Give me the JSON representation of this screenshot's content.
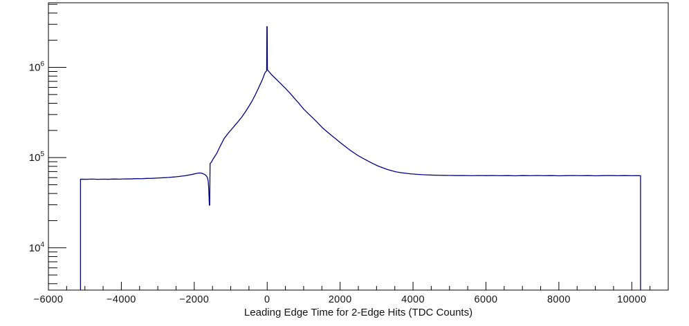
{
  "chart_data": {
    "type": "line",
    "title": "",
    "xlabel": "Leading Edge Time for 2-Edge Hits (TDC Counts)",
    "ylabel": "",
    "grid": false,
    "legend": null,
    "background_color": "#ffffff",
    "frame_color": "#000000",
    "x_axis": {
      "min": -6000,
      "max": 11000,
      "major_tick_values": [
        -6000,
        -4000,
        -2000,
        0,
        2000,
        4000,
        6000,
        8000,
        10000
      ],
      "major_tick_labels": [
        "−6000",
        "−4000",
        "−2000",
        "0",
        "2000",
        "4000",
        "6000",
        "8000",
        "10000"
      ],
      "minor_tick_step": 500
    },
    "y_axis": {
      "scale": "log",
      "min": 3400,
      "max": 5200000,
      "major_tick_values": [
        10000,
        100000,
        1000000
      ],
      "major_tick_labels": [
        {
          "mantissa": "10",
          "exponent": "4"
        },
        {
          "mantissa": "10",
          "exponent": "5"
        },
        {
          "mantissa": "10",
          "exponent": "6"
        }
      ],
      "minor_multiples": [
        2,
        3,
        4,
        5,
        6,
        7,
        8,
        9
      ]
    },
    "series": [
      {
        "name": "leading-edge-time-2edge-hits",
        "color": "#00008b",
        "line_width": 1.3,
        "x_data_range": [
          -5120,
          10240
        ],
        "plateau_left": 57600,
        "plateau_right": 63000,
        "dip_x": -1590,
        "dip_value": 29700,
        "peak_value": 910000,
        "spike_value": 2830000,
        "points": [
          [
            -5120,
            3400
          ],
          [
            -5120,
            57600
          ],
          [
            -4950,
            57500
          ],
          [
            -4800,
            57800
          ],
          [
            -4650,
            57400
          ],
          [
            -4500,
            57700
          ],
          [
            -4350,
            57500
          ],
          [
            -4200,
            57900
          ],
          [
            -4050,
            57700
          ],
          [
            -3900,
            58100
          ],
          [
            -3750,
            58000
          ],
          [
            -3600,
            58400
          ],
          [
            -3450,
            58300
          ],
          [
            -3300,
            58800
          ],
          [
            -3150,
            58900
          ],
          [
            -3000,
            59400
          ],
          [
            -2850,
            59800
          ],
          [
            -2700,
            60300
          ],
          [
            -2550,
            61000
          ],
          [
            -2400,
            61900
          ],
          [
            -2250,
            63000
          ],
          [
            -2100,
            64600
          ],
          [
            -2000,
            65900
          ],
          [
            -1920,
            67000
          ],
          [
            -1870,
            67500
          ],
          [
            -1810,
            67300
          ],
          [
            -1760,
            66400
          ],
          [
            -1710,
            64800
          ],
          [
            -1670,
            62800
          ],
          [
            -1640,
            60200
          ],
          [
            -1618,
            55000
          ],
          [
            -1604,
            46000
          ],
          [
            -1594,
            36500
          ],
          [
            -1586,
            29700
          ],
          [
            -1576,
            29700
          ],
          [
            -1570,
            62000
          ],
          [
            -1566,
            86000
          ],
          [
            -1530,
            89000
          ],
          [
            -1490,
            95500
          ],
          [
            -1440,
            102500
          ],
          [
            -1380,
            112000
          ],
          [
            -1300,
            131000
          ],
          [
            -1180,
            163000
          ],
          [
            -1060,
            188000
          ],
          [
            -990,
            203000
          ],
          [
            -900,
            224000
          ],
          [
            -800,
            250000
          ],
          [
            -700,
            280000
          ],
          [
            -610,
            316000
          ],
          [
            -520,
            360000
          ],
          [
            -420,
            420000
          ],
          [
            -330,
            492000
          ],
          [
            -230,
            600000
          ],
          [
            -160,
            690000
          ],
          [
            -110,
            770000
          ],
          [
            -70,
            855000
          ],
          [
            -40,
            895000
          ],
          [
            -15,
            912000
          ],
          [
            -8,
            2830000
          ],
          [
            0,
            2830000
          ],
          [
            6,
            940000
          ],
          [
            120,
            830000
          ],
          [
            250,
            738000
          ],
          [
            380,
            655000
          ],
          [
            500,
            586000
          ],
          [
            630,
            515000
          ],
          [
            750,
            452000
          ],
          [
            880,
            395000
          ],
          [
            1000,
            345000
          ],
          [
            1130,
            306000
          ],
          [
            1260,
            273000
          ],
          [
            1390,
            242000
          ],
          [
            1510,
            215000
          ],
          [
            1640,
            194000
          ],
          [
            1770,
            175000
          ],
          [
            1900,
            159000
          ],
          [
            2020,
            145000
          ],
          [
            2150,
            132000
          ],
          [
            2270,
            121000
          ],
          [
            2400,
            111500
          ],
          [
            2530,
            103000
          ],
          [
            2660,
            96500
          ],
          [
            2780,
            91000
          ],
          [
            2900,
            85800
          ],
          [
            3030,
            81000
          ],
          [
            3160,
            77300
          ],
          [
            3290,
            74000
          ],
          [
            3420,
            71500
          ],
          [
            3540,
            69400
          ],
          [
            3670,
            68000
          ],
          [
            3800,
            67000
          ],
          [
            3950,
            66000
          ],
          [
            4100,
            65300
          ],
          [
            4250,
            64700
          ],
          [
            4400,
            64300
          ],
          [
            4550,
            63900
          ],
          [
            4700,
            63700
          ],
          [
            4850,
            63500
          ],
          [
            5000,
            63400
          ],
          [
            5200,
            63200
          ],
          [
            5400,
            63300
          ],
          [
            5600,
            63000
          ],
          [
            5800,
            63300
          ],
          [
            6000,
            63100
          ],
          [
            6200,
            63300
          ],
          [
            6400,
            63000
          ],
          [
            6600,
            63200
          ],
          [
            6800,
            62900
          ],
          [
            7000,
            63200
          ],
          [
            7200,
            63000
          ],
          [
            7400,
            63300
          ],
          [
            7600,
            63000
          ],
          [
            7800,
            63200
          ],
          [
            8000,
            62900
          ],
          [
            8200,
            63100
          ],
          [
            8400,
            63300
          ],
          [
            8600,
            63000
          ],
          [
            8800,
            63200
          ],
          [
            9000,
            62900
          ],
          [
            9200,
            63100
          ],
          [
            9400,
            63300
          ],
          [
            9600,
            63000
          ],
          [
            9800,
            63200
          ],
          [
            10000,
            63000
          ],
          [
            10120,
            63100
          ],
          [
            10240,
            63000
          ],
          [
            10240,
            3400
          ]
        ]
      }
    ]
  }
}
